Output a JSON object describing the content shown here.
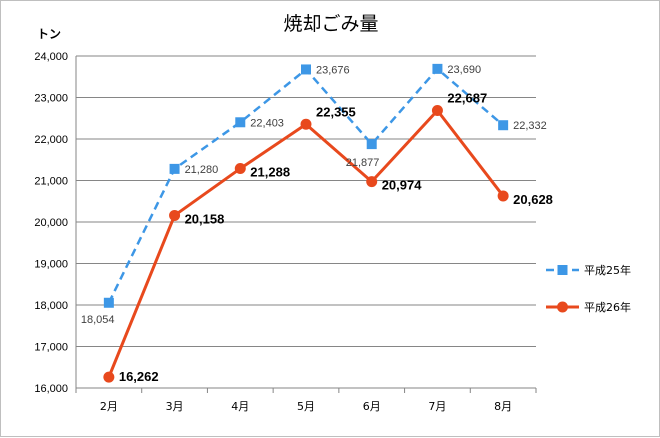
{
  "chart_data": {
    "type": "line",
    "title": "焼却ごみ量",
    "ylabel": "トン",
    "xlabel": "",
    "categories": [
      "2月",
      "3月",
      "4月",
      "5月",
      "6月",
      "7月",
      "8月"
    ],
    "ylim": [
      16000,
      24000
    ],
    "yticks": [
      16000,
      17000,
      18000,
      19000,
      20000,
      21000,
      22000,
      23000,
      24000
    ],
    "ytick_labels": [
      "16,000",
      "17,000",
      "18,000",
      "19,000",
      "20,000",
      "21,000",
      "22,000",
      "23,000",
      "24,000"
    ],
    "grid": "horizontal",
    "legend_position": "right",
    "series": [
      {
        "name": "平成25年",
        "values": [
          18054,
          21280,
          22403,
          23676,
          21877,
          23690,
          22332
        ],
        "labels": [
          "18,054",
          "21,280",
          "22,403",
          "23,676",
          "21,877",
          "23,690",
          "22,332"
        ],
        "color": "#3d97e6",
        "line_style": "dashed",
        "marker": "square"
      },
      {
        "name": "平成26年",
        "values": [
          16262,
          20158,
          21288,
          22355,
          20974,
          22687,
          20628
        ],
        "labels": [
          "16,262",
          "20,158",
          "21,288",
          "22,355",
          "20,974",
          "22,687",
          "20,628"
        ],
        "color": "#e8491d",
        "line_style": "solid",
        "marker": "circle"
      }
    ]
  }
}
